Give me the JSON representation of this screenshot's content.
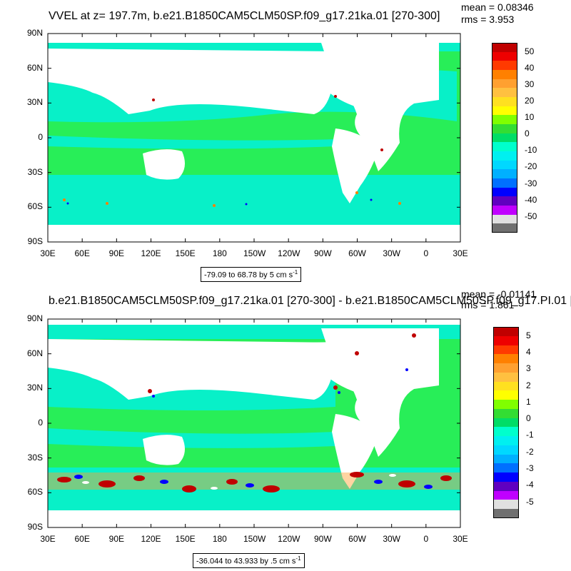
{
  "panels": [
    {
      "title": "VVEL at z= 197.7m, b.e21.B1850CAM5CLM50SP.f09_g17.21ka.01 [270-300]",
      "mean": "mean = 0.08346",
      "rms": "rms = 3.953",
      "range_text": "-79.09 to 68.78 by 5 cm s",
      "range_unit_sup": "-1",
      "colorbar": {
        "labels": [
          "50",
          "40",
          "30",
          "20",
          "10",
          "0",
          "-10",
          "-20",
          "-30",
          "-40",
          "-50"
        ],
        "colors": [
          "#c00000",
          "#ee0000",
          "#ff3a00",
          "#ff8000",
          "#ffa030",
          "#ffc040",
          "#ffe020",
          "#ffff00",
          "#80ff00",
          "#33dd33",
          "#00dd66",
          "#00ffcc",
          "#00f0f0",
          "#00d8ff",
          "#00b0ff",
          "#0070ff",
          "#0000ff",
          "#6000c0",
          "#c000ff",
          "#e0e0e0",
          "#707070"
        ]
      }
    },
    {
      "title": "b.e21.B1850CAM5CLM50SP.f09_g17.21ka.01 [270-300] - b.e21.B1850CAM5CLM50SP.f09_g17.PI.01 [",
      "mean": "mean = -0.01141",
      "rms": "rms = 1.861",
      "range_text": "-36.044 to 43.933 by .5 cm s",
      "range_unit_sup": "-1",
      "colorbar": {
        "labels": [
          "5",
          "4",
          "3",
          "2",
          "1",
          "0",
          "-1",
          "-2",
          "-3",
          "-4",
          "-5"
        ],
        "colors": [
          "#c00000",
          "#ee0000",
          "#ff3a00",
          "#ff8000",
          "#ffa030",
          "#ffc040",
          "#ffe020",
          "#ffff00",
          "#80ff00",
          "#33dd33",
          "#00dd66",
          "#00ffcc",
          "#00f0f0",
          "#00d8ff",
          "#00b0ff",
          "#0070ff",
          "#0000ff",
          "#6000c0",
          "#c000ff",
          "#e0e0e0",
          "#707070"
        ]
      }
    }
  ],
  "axes": {
    "lat_labels": [
      "90N",
      "60N",
      "30N",
      "0",
      "30S",
      "60S",
      "90S"
    ],
    "lon_labels": [
      "30E",
      "60E",
      "90E",
      "120E",
      "150E",
      "180",
      "150W",
      "120W",
      "90W",
      "60W",
      "30W",
      "0",
      "30E"
    ]
  },
  "colors": {
    "ocean_main": "#28ee58",
    "ocean_band": "#08f0c8",
    "land": "#ffffff"
  }
}
